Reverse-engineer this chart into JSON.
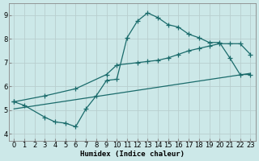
{
  "xlabel": "Humidex (Indice chaleur)",
  "bg_color": "#cce8e8",
  "grid_color": "#b8cece",
  "line_color": "#1a6b6b",
  "xlim": [
    -0.5,
    23.5
  ],
  "ylim": [
    3.7,
    9.5
  ],
  "xticks": [
    0,
    1,
    2,
    3,
    4,
    5,
    6,
    7,
    8,
    9,
    10,
    11,
    12,
    13,
    14,
    15,
    16,
    17,
    18,
    19,
    20,
    21,
    22,
    23
  ],
  "yticks": [
    4,
    5,
    6,
    7,
    8,
    9
  ],
  "line1_x": [
    0,
    1,
    3,
    4,
    5,
    6,
    7,
    8,
    9,
    10,
    11,
    12,
    13,
    14,
    15,
    16,
    17,
    18,
    19,
    20,
    21,
    22,
    23
  ],
  "line1_y": [
    5.35,
    5.2,
    4.7,
    4.5,
    4.45,
    4.3,
    5.05,
    5.6,
    6.25,
    6.3,
    8.05,
    8.75,
    9.1,
    8.9,
    8.6,
    8.5,
    8.2,
    8.05,
    7.85,
    7.85,
    7.2,
    6.5,
    6.5
  ],
  "line2_x": [
    0,
    3,
    6,
    9,
    10,
    12,
    13,
    14,
    15,
    16,
    17,
    18,
    19,
    20,
    21,
    22,
    23
  ],
  "line2_y": [
    5.35,
    5.6,
    5.9,
    6.5,
    6.9,
    7.0,
    7.05,
    7.1,
    7.2,
    7.35,
    7.5,
    7.6,
    7.7,
    7.8,
    7.8,
    7.8,
    7.35
  ],
  "line3_x": [
    0,
    23
  ],
  "line3_y": [
    5.05,
    6.55
  ]
}
